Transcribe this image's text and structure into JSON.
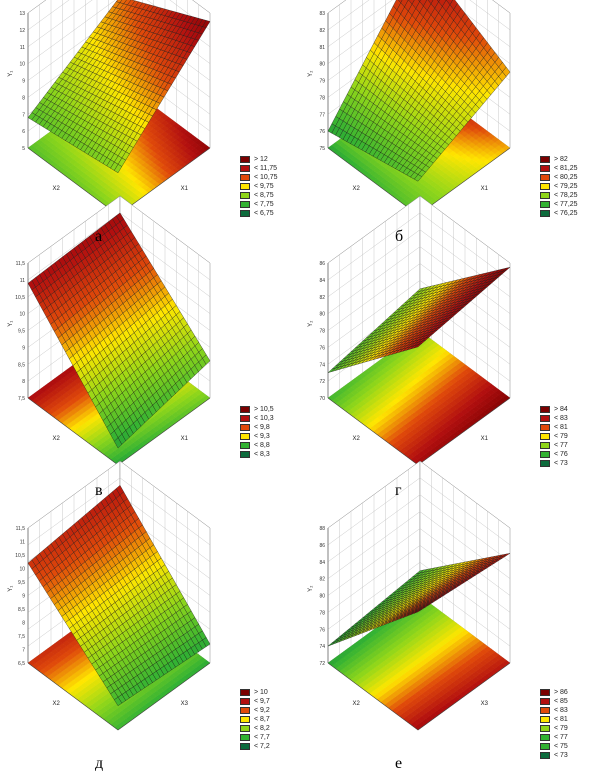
{
  "chart_data": [
    {
      "type": "surface3d",
      "caption": "а",
      "zlabel": "Y₁",
      "xlabel": "X1",
      "ylabel": "X2",
      "ztick_labels": [
        "13",
        "12",
        "11",
        "10",
        "9",
        "8",
        "7",
        "6",
        "5"
      ],
      "z_range": [
        5,
        13
      ],
      "corner_values": [
        7.5,
        12.5,
        10.0,
        6.8
      ],
      "legend": [
        {
          "label": "> 12",
          "color": "#7a0000"
        },
        {
          "label": "< 11,75",
          "color": "#b20f0f"
        },
        {
          "label": "< 10,75",
          "color": "#e04a0a"
        },
        {
          "label": "< 9,75",
          "color": "#ffe600"
        },
        {
          "label": "< 8,75",
          "color": "#8fd61a"
        },
        {
          "label": "< 7,75",
          "color": "#33b233"
        },
        {
          "label": "< 6,75",
          "color": "#0d6b3d"
        }
      ]
    },
    {
      "type": "surface3d",
      "caption": "б",
      "zlabel": "Y₂",
      "xlabel": "X1",
      "ylabel": "X2",
      "ztick_labels": [
        "83",
        "82",
        "81",
        "80",
        "79",
        "78",
        "77",
        "76",
        "75"
      ],
      "z_range": [
        75,
        83
      ],
      "corner_values": [
        77.0,
        79.5,
        82.5,
        76.0
      ],
      "legend": [
        {
          "label": "> 82",
          "color": "#7a0000"
        },
        {
          "label": "< 81,25",
          "color": "#b20f0f"
        },
        {
          "label": "< 80,25",
          "color": "#e04a0a"
        },
        {
          "label": "< 79,25",
          "color": "#ffe600"
        },
        {
          "label": "< 78,25",
          "color": "#8fd61a"
        },
        {
          "label": "< 77,25",
          "color": "#33b233"
        },
        {
          "label": "< 76,25",
          "color": "#0d6b3d"
        }
      ]
    },
    {
      "type": "surface3d",
      "caption": "в",
      "zlabel": "Y₁",
      "xlabel": "X1",
      "ylabel": "X2",
      "ztick_labels": [
        "11,5",
        "11",
        "10,5",
        "10",
        "9,5",
        "9",
        "8,5",
        "8",
        "7,5"
      ],
      "z_range": [
        7.5,
        11.5
      ],
      "corner_values": [
        8.0,
        8.6,
        11.0,
        10.9
      ],
      "legend": [
        {
          "label": "> 10,5",
          "color": "#7a0000"
        },
        {
          "label": "< 10,3",
          "color": "#b20f0f"
        },
        {
          "label": "< 9,8",
          "color": "#e04a0a"
        },
        {
          "label": "< 9,3",
          "color": "#ffe600"
        },
        {
          "label": "< 8,8",
          "color": "#33b233"
        },
        {
          "label": "< 8,3",
          "color": "#0d6b3d"
        }
      ]
    },
    {
      "type": "surface3d",
      "caption": "г",
      "zlabel": "Y₂",
      "xlabel": "X1",
      "ylabel": "X2",
      "ztick_labels": [
        "86",
        "84",
        "82",
        "80",
        "78",
        "76",
        "74",
        "72",
        "70"
      ],
      "z_range": [
        70,
        86
      ],
      "corner_values": [
        84.0,
        85.5,
        75.0,
        73.0
      ],
      "legend": [
        {
          "label": "> 84",
          "color": "#7a0000"
        },
        {
          "label": "< 83",
          "color": "#b20f0f"
        },
        {
          "label": "< 81",
          "color": "#e04a0a"
        },
        {
          "label": "< 79",
          "color": "#ffe600"
        },
        {
          "label": "< 77",
          "color": "#8fd61a"
        },
        {
          "label": "< 76",
          "color": "#33b233"
        },
        {
          "label": "< 73",
          "color": "#0d6b3d"
        }
      ]
    },
    {
      "type": "surface3d",
      "caption": "д",
      "zlabel": "Y₁",
      "xlabel": "X3",
      "ylabel": "X2",
      "ztick_labels": [
        "11,5",
        "11",
        "10,5",
        "10",
        "9,5",
        "9",
        "8,5",
        "8",
        "7,5",
        "7",
        "6,5"
      ],
      "z_range": [
        6.5,
        11.5
      ],
      "corner_values": [
        7.4,
        7.2,
        10.6,
        10.2
      ],
      "legend": [
        {
          "label": "> 10",
          "color": "#7a0000"
        },
        {
          "label": "< 9,7",
          "color": "#b20f0f"
        },
        {
          "label": "< 9,2",
          "color": "#e04a0a"
        },
        {
          "label": "< 8,7",
          "color": "#ffe600"
        },
        {
          "label": "< 8,2",
          "color": "#8fd61a"
        },
        {
          "label": "< 7,7",
          "color": "#33b233"
        },
        {
          "label": "< 7,2",
          "color": "#0d6b3d"
        }
      ]
    },
    {
      "type": "surface3d",
      "caption": "е",
      "zlabel": "Y₂",
      "xlabel": "X3",
      "ylabel": "X2",
      "ztick_labels": [
        "88",
        "86",
        "84",
        "82",
        "80",
        "78",
        "76",
        "74",
        "72"
      ],
      "z_range": [
        72,
        88
      ],
      "corner_values": [
        86.0,
        85.0,
        75.0,
        74.0
      ],
      "legend": [
        {
          "label": "> 86",
          "color": "#7a0000"
        },
        {
          "label": "< 85",
          "color": "#b20f0f"
        },
        {
          "label": "< 83",
          "color": "#e04a0a"
        },
        {
          "label": "< 81",
          "color": "#ffe600"
        },
        {
          "label": "< 79",
          "color": "#8fd61a"
        },
        {
          "label": "< 77",
          "color": "#33b233"
        },
        {
          "label": "< 75",
          "color": "#33b233"
        },
        {
          "label": "< 73",
          "color": "#0d6b3d"
        }
      ]
    }
  ]
}
